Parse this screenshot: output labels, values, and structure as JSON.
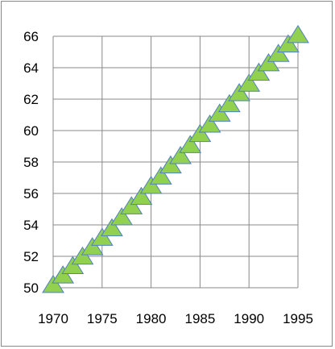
{
  "chart_data": {
    "type": "scatter",
    "title": "",
    "xlabel": "",
    "ylabel": "",
    "xlim": [
      1970,
      1995
    ],
    "ylim": [
      50,
      66
    ],
    "x_ticks": [
      1970,
      1975,
      1980,
      1985,
      1990,
      1995
    ],
    "y_ticks": [
      50,
      52,
      54,
      56,
      58,
      60,
      62,
      64,
      66
    ],
    "x_tick_labels": [
      "1970",
      "1975",
      "1980",
      "1985",
      "1990",
      "1995"
    ],
    "y_tick_labels": [
      "50",
      "52",
      "54",
      "56",
      "58",
      "60",
      "62",
      "64",
      "66"
    ],
    "grid": true,
    "legend": "none",
    "marker": "triangle",
    "marker_fill": "#92d050",
    "marker_stroke": "#4f81bd",
    "series": [
      {
        "x": [
          1970,
          1971,
          1972,
          1973,
          1974,
          1975,
          1976,
          1977,
          1978,
          1979,
          1980,
          1981,
          1982,
          1983,
          1984,
          1985,
          1986,
          1987,
          1988,
          1989,
          1990,
          1991,
          1992,
          1993,
          1994,
          1995
        ],
        "y": [
          50.0,
          50.6,
          51.2,
          51.8,
          52.4,
          53.0,
          53.6,
          54.3,
          55.0,
          55.6,
          56.3,
          56.9,
          57.6,
          58.2,
          58.9,
          59.6,
          60.2,
          60.9,
          61.5,
          62.2,
          62.8,
          63.5,
          64.1,
          64.7,
          65.3,
          65.9
        ]
      }
    ]
  }
}
